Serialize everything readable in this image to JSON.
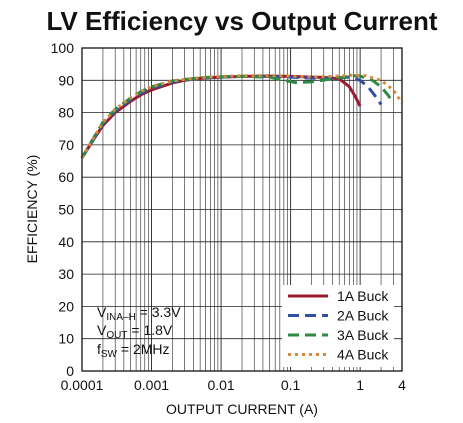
{
  "chart_data": {
    "type": "line",
    "title": "LV Efficiency vs Output Current",
    "xlabel": "OUTPUT CURRENT (A)",
    "ylabel": "EFFICIENCY (%)",
    "x_scale": "log",
    "xlim": [
      0.0001,
      4
    ],
    "ylim": [
      0,
      100
    ],
    "x_ticks": [
      {
        "value": 0.0001,
        "label": "0.0001"
      },
      {
        "value": 0.001,
        "label": "0.001"
      },
      {
        "value": 0.01,
        "label": "0.01"
      },
      {
        "value": 0.1,
        "label": "0.1"
      },
      {
        "value": 1,
        "label": "1"
      },
      {
        "value": 4,
        "label": "4"
      }
    ],
    "y_ticks": [
      0,
      10,
      20,
      30,
      40,
      50,
      60,
      70,
      80,
      90,
      100
    ],
    "grid": true,
    "legend_position": "bottom-right",
    "annotations": [
      {
        "main": "V",
        "sub": "INA–H",
        "rest": " = 3.3V"
      },
      {
        "main": "V",
        "sub": "OUT",
        "rest": " = 1.8V"
      },
      {
        "main": "f",
        "sub": "SW",
        "rest": " = 2MHz"
      }
    ],
    "series": [
      {
        "name": "1A Buck",
        "color": "#9b1b30",
        "dash": "solid",
        "points": [
          [
            0.0001,
            66
          ],
          [
            0.00015,
            72
          ],
          [
            0.0002,
            76
          ],
          [
            0.0003,
            80
          ],
          [
            0.0005,
            83.5
          ],
          [
            0.0007,
            85.5
          ],
          [
            0.001,
            87
          ],
          [
            0.0015,
            88.3
          ],
          [
            0.002,
            89.2
          ],
          [
            0.003,
            90
          ],
          [
            0.005,
            90.6
          ],
          [
            0.01,
            91
          ],
          [
            0.02,
            91.2
          ],
          [
            0.05,
            91.3
          ],
          [
            0.1,
            91.2
          ],
          [
            0.2,
            91
          ],
          [
            0.3,
            90.9
          ],
          [
            0.5,
            90.5
          ],
          [
            0.7,
            88
          ],
          [
            0.85,
            85
          ],
          [
            1.0,
            82
          ]
        ]
      },
      {
        "name": "2A Buck",
        "color": "#2e4fa3",
        "dash": "long",
        "points": [
          [
            0.0001,
            66
          ],
          [
            0.00015,
            72
          ],
          [
            0.0002,
            76.5
          ],
          [
            0.0003,
            80.5
          ],
          [
            0.0005,
            84
          ],
          [
            0.0007,
            86
          ],
          [
            0.001,
            87.5
          ],
          [
            0.002,
            89.5
          ],
          [
            0.005,
            90.7
          ],
          [
            0.01,
            91
          ],
          [
            0.02,
            91.2
          ],
          [
            0.05,
            91.2
          ],
          [
            0.1,
            91
          ],
          [
            0.2,
            90.7
          ],
          [
            0.4,
            90.6
          ],
          [
            0.7,
            91
          ],
          [
            1.0,
            90
          ],
          [
            1.3,
            88
          ],
          [
            1.6,
            85.5
          ],
          [
            2.0,
            82.5
          ]
        ]
      },
      {
        "name": "3A Buck",
        "color": "#2e8b45",
        "dash": "long",
        "points": [
          [
            0.0001,
            66
          ],
          [
            0.00015,
            72.5
          ],
          [
            0.0002,
            77
          ],
          [
            0.0003,
            81
          ],
          [
            0.0005,
            84.5
          ],
          [
            0.0007,
            86.5
          ],
          [
            0.001,
            88
          ],
          [
            0.002,
            89.8
          ],
          [
            0.005,
            90.8
          ],
          [
            0.01,
            91.1
          ],
          [
            0.02,
            91.2
          ],
          [
            0.05,
            91
          ],
          [
            0.08,
            90
          ],
          [
            0.12,
            89.3
          ],
          [
            0.2,
            89.5
          ],
          [
            0.4,
            90.5
          ],
          [
            0.8,
            91.4
          ],
          [
            1.0,
            91.3
          ],
          [
            1.5,
            90
          ],
          [
            2.0,
            88
          ],
          [
            2.5,
            85.5
          ],
          [
            3.0,
            83
          ]
        ]
      },
      {
        "name": "4A Buck",
        "color": "#d88a3a",
        "dash": "dot",
        "points": [
          [
            0.0001,
            66
          ],
          [
            0.00015,
            72.5
          ],
          [
            0.0002,
            77
          ],
          [
            0.0003,
            81
          ],
          [
            0.0005,
            84.5
          ],
          [
            0.0007,
            86.5
          ],
          [
            0.001,
            88
          ],
          [
            0.002,
            89.8
          ],
          [
            0.005,
            90.8
          ],
          [
            0.01,
            91.2
          ],
          [
            0.02,
            91.4
          ],
          [
            0.05,
            91.5
          ],
          [
            0.1,
            91.3
          ],
          [
            0.2,
            91
          ],
          [
            0.4,
            91.2
          ],
          [
            0.8,
            91.6
          ],
          [
            1.2,
            91.4
          ],
          [
            2.0,
            90
          ],
          [
            3.0,
            87
          ],
          [
            4.0,
            83
          ]
        ]
      }
    ]
  }
}
